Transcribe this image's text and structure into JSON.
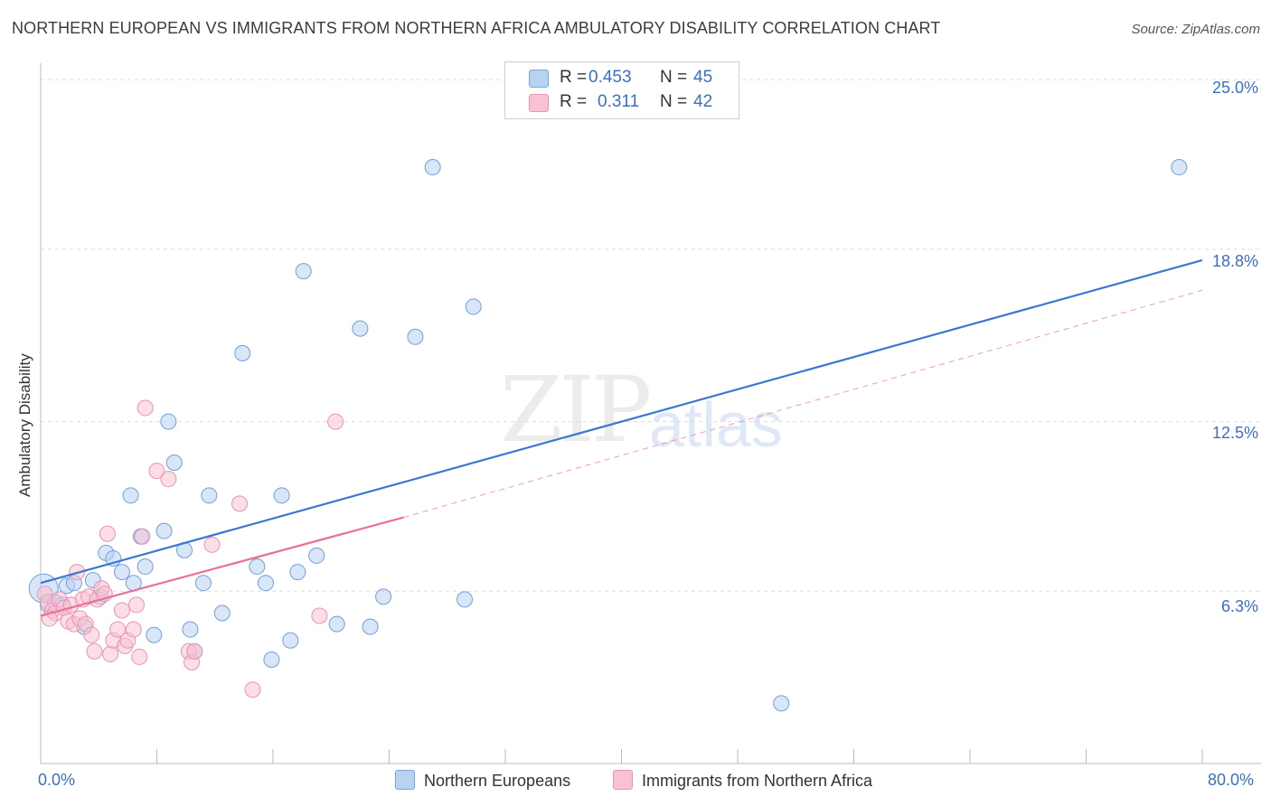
{
  "title": "NORTHERN EUROPEAN VS IMMIGRANTS FROM NORTHERN AFRICA AMBULATORY DISABILITY CORRELATION CHART",
  "source": "Source: ZipAtlas.com",
  "watermark": {
    "zip": "ZIP",
    "atlas": "atlas"
  },
  "legend": {
    "rows": [
      {
        "r_label": "R =",
        "r_value": "0.453",
        "n_label": "N =",
        "n_value": "45",
        "color": "#a8c8f0"
      },
      {
        "r_label": "R =",
        "r_value": "0.311",
        "n_label": "N =",
        "n_value": "42",
        "color": "#f8b8cc"
      }
    ]
  },
  "colors": {
    "blue": "#3a78d4",
    "pink": "#e8709a",
    "blue_fill": "#b8d2f2",
    "pink_fill": "#f8c2d2",
    "axis_text": "#3b6fc4"
  },
  "chart_data": {
    "type": "scatter",
    "title": "NORTHERN EUROPEAN VS IMMIGRANTS FROM NORTHERN AFRICA AMBULATORY DISABILITY CORRELATION CHART",
    "xlabel": "",
    "ylabel": "Ambulatory Disability",
    "xlim": [
      0,
      80
    ],
    "ylim": [
      0,
      25.6
    ],
    "x_tick_labels": {
      "min": "0.0%",
      "max": "80.0%"
    },
    "y_ticks": [
      {
        "value": 6.3,
        "label": "6.3%"
      },
      {
        "value": 12.5,
        "label": "12.5%"
      },
      {
        "value": 18.8,
        "label": "18.8%"
      },
      {
        "value": 25.0,
        "label": "25.0%"
      }
    ],
    "grid": true,
    "legend_position": "bottom",
    "series": [
      {
        "name": "Northern Europeans",
        "color": "#3a78d4",
        "points": [
          [
            0.2,
            6.4
          ],
          [
            0.5,
            5.8
          ],
          [
            1.0,
            5.9
          ],
          [
            1.5,
            5.8
          ],
          [
            1.8,
            6.5
          ],
          [
            2.3,
            6.6
          ],
          [
            3.0,
            5.0
          ],
          [
            3.6,
            6.7
          ],
          [
            4.1,
            6.1
          ],
          [
            4.5,
            7.7
          ],
          [
            5.0,
            7.5
          ],
          [
            5.6,
            7.0
          ],
          [
            6.2,
            9.8
          ],
          [
            6.4,
            6.6
          ],
          [
            6.9,
            8.3
          ],
          [
            7.2,
            7.2
          ],
          [
            7.8,
            4.7
          ],
          [
            8.5,
            8.5
          ],
          [
            8.8,
            12.5
          ],
          [
            9.2,
            11.0
          ],
          [
            9.9,
            7.8
          ],
          [
            10.3,
            4.9
          ],
          [
            10.6,
            4.1
          ],
          [
            11.2,
            6.6
          ],
          [
            11.6,
            9.8
          ],
          [
            12.5,
            5.5
          ],
          [
            13.9,
            15.0
          ],
          [
            14.9,
            7.2
          ],
          [
            15.5,
            6.6
          ],
          [
            15.9,
            3.8
          ],
          [
            16.6,
            9.8
          ],
          [
            17.2,
            4.5
          ],
          [
            17.7,
            7.0
          ],
          [
            18.1,
            18.0
          ],
          [
            19.0,
            7.6
          ],
          [
            20.4,
            5.1
          ],
          [
            22.0,
            15.9
          ],
          [
            22.7,
            5.0
          ],
          [
            23.6,
            6.1
          ],
          [
            25.8,
            15.6
          ],
          [
            27.0,
            21.8
          ],
          [
            29.2,
            6.0
          ],
          [
            29.8,
            16.7
          ],
          [
            51.0,
            2.2
          ],
          [
            78.4,
            21.8
          ]
        ],
        "trendline": {
          "x": [
            0,
            80
          ],
          "y": [
            6.6,
            18.4
          ]
        }
      },
      {
        "name": "Immigrants from Northern Africa",
        "color": "#e8709a",
        "points": [
          [
            0.3,
            6.2
          ],
          [
            0.5,
            5.9
          ],
          [
            0.8,
            5.6
          ],
          [
            1.0,
            5.5
          ],
          [
            1.3,
            6.0
          ],
          [
            1.6,
            5.7
          ],
          [
            1.9,
            5.2
          ],
          [
            2.1,
            5.8
          ],
          [
            2.3,
            5.1
          ],
          [
            2.5,
            7.0
          ],
          [
            2.7,
            5.3
          ],
          [
            2.9,
            6.0
          ],
          [
            3.1,
            5.1
          ],
          [
            3.3,
            6.1
          ],
          [
            3.5,
            4.7
          ],
          [
            3.7,
            4.1
          ],
          [
            3.9,
            6.0
          ],
          [
            4.2,
            6.4
          ],
          [
            4.4,
            6.2
          ],
          [
            4.6,
            8.4
          ],
          [
            4.8,
            4.0
          ],
          [
            5.0,
            4.5
          ],
          [
            5.3,
            4.9
          ],
          [
            5.6,
            5.6
          ],
          [
            5.8,
            4.3
          ],
          [
            6.0,
            4.5
          ],
          [
            6.4,
            4.9
          ],
          [
            6.6,
            5.8
          ],
          [
            6.8,
            3.9
          ],
          [
            7.0,
            8.3
          ],
          [
            7.2,
            13.0
          ],
          [
            8.0,
            10.7
          ],
          [
            8.8,
            10.4
          ],
          [
            10.2,
            4.1
          ],
          [
            10.4,
            3.7
          ],
          [
            10.6,
            4.1
          ],
          [
            11.8,
            8.0
          ],
          [
            13.7,
            9.5
          ],
          [
            14.6,
            2.7
          ],
          [
            19.2,
            5.4
          ],
          [
            20.3,
            12.5
          ],
          [
            0.6,
            5.3
          ]
        ],
        "trendline": {
          "x": [
            0,
            25
          ],
          "y": [
            5.4,
            9.0
          ],
          "dashed_extension": {
            "x": [
              25,
              80
            ],
            "y": [
              9.0,
              17.3
            ]
          }
        }
      }
    ]
  },
  "bottom_legend": {
    "items": [
      {
        "label": "Northern Europeans",
        "color": "#b8d2f2"
      },
      {
        "label": "Immigrants from Northern Africa",
        "color": "#f8c2d2"
      }
    ]
  }
}
